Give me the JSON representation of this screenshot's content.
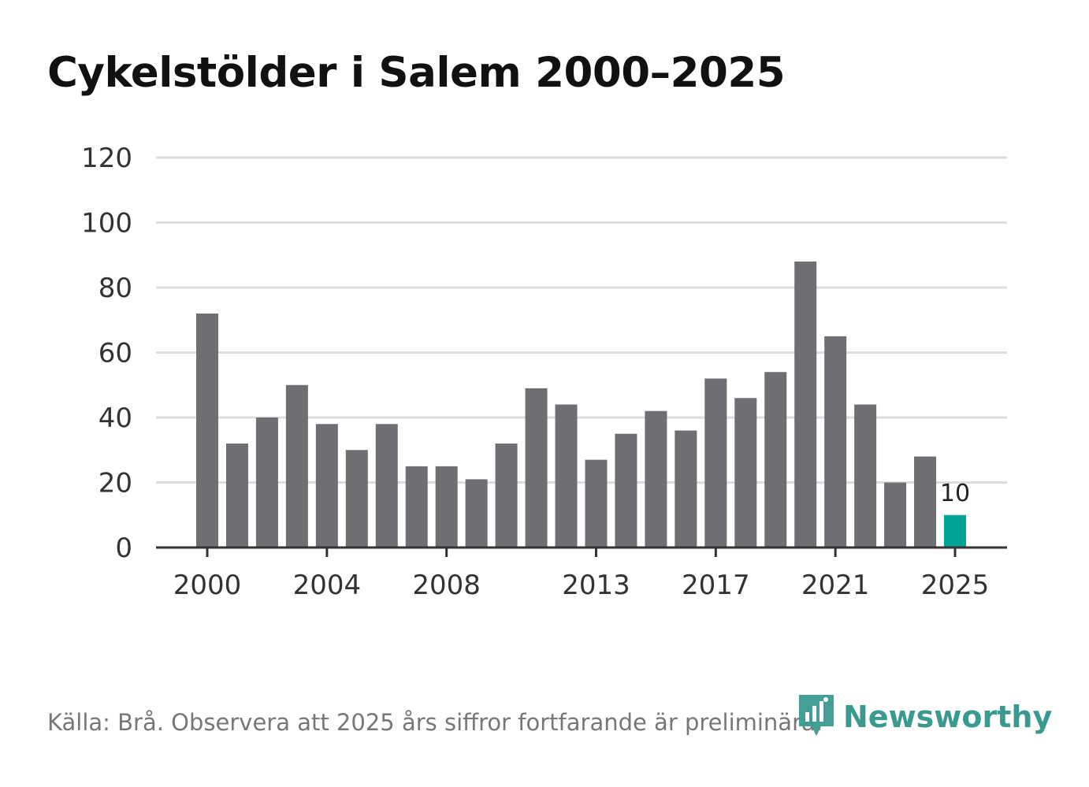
{
  "title": "Cykelstölder i Salem 2000–2025",
  "footer": {
    "source": "Källa: Brå. Observera att 2025 års siffror fortfarande är preliminära."
  },
  "brand": {
    "name": "Newsworthy",
    "icon": "newsworthy-logo-icon",
    "color": "#3a9a8f"
  },
  "colors": {
    "bar": "#6f6e73",
    "highlight": "#00a497",
    "grid": "#dddddd",
    "axis": "#333333"
  },
  "chart_data": {
    "type": "bar",
    "title": "Cykelstölder i Salem 2000–2025",
    "xlabel": "",
    "ylabel": "",
    "categories": [
      "2000",
      "2001",
      "2002",
      "2003",
      "2004",
      "2005",
      "2006",
      "2007",
      "2008",
      "2009",
      "2010",
      "2011",
      "2012",
      "2013",
      "2014",
      "2015",
      "2016",
      "2017",
      "2018",
      "2019",
      "2020",
      "2021",
      "2022",
      "2023",
      "2024",
      "2025"
    ],
    "values": [
      72,
      32,
      40,
      50,
      38,
      30,
      38,
      25,
      25,
      21,
      32,
      49,
      44,
      27,
      35,
      42,
      36,
      52,
      46,
      54,
      88,
      65,
      44,
      20,
      28,
      10
    ],
    "highlight_index": 25,
    "ylim": [
      0,
      120
    ],
    "yticks": [
      0,
      20,
      40,
      60,
      80,
      100,
      120
    ],
    "xtick_labels": [
      "2000",
      "2004",
      "2008",
      "2013",
      "2017",
      "2021",
      "2025"
    ],
    "data_labels": [
      {
        "category": "2025",
        "text": "10"
      }
    ],
    "grid": true
  }
}
